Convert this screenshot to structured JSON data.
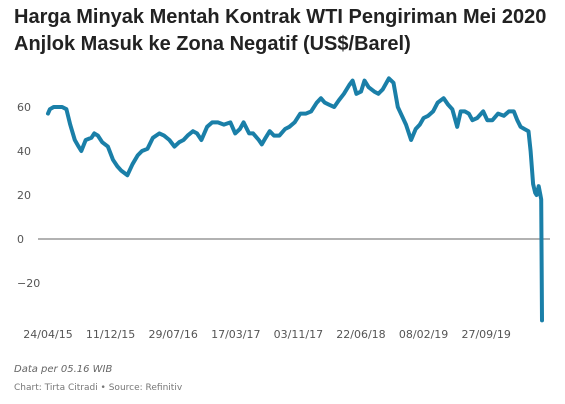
{
  "chart_data": {
    "type": "line",
    "title": "Harga Minyak Mentah Kontrak WTI Pengiriman Mei 2020 Anjlok Masuk ke Zona Negatif (US$/Barel)",
    "xlabel": "",
    "ylabel": "",
    "ylim": [
      -38,
      75
    ],
    "y_ticks": [
      60,
      40,
      20,
      0,
      -20
    ],
    "y_tick_labels": [
      "60",
      "40",
      "20",
      "0",
      "−20"
    ],
    "x_ticks": [
      "2015-04-24",
      "2015-12-11",
      "2016-07-29",
      "2017-03-17",
      "2017-11-03",
      "2018-06-22",
      "2019-02-08",
      "2019-09-27"
    ],
    "x_tick_labels": [
      "24/04/15",
      "11/12/15",
      "29/07/16",
      "17/03/17",
      "03/11/17",
      "22/06/18",
      "08/02/19",
      "27/09/19"
    ],
    "xlim": [
      "2015-04-24",
      "2020-04-20"
    ],
    "grid": false,
    "zero_line": true,
    "line_color": "#1a7fa8",
    "series": [
      {
        "x": [
          "2015-04-24",
          "2015-05-01",
          "2015-05-15",
          "2015-06-01",
          "2015-06-15",
          "2015-07-01",
          "2015-07-15",
          "2015-08-01",
          "2015-08-15",
          "2015-08-25",
          "2015-09-10",
          "2015-10-01",
          "2015-10-12",
          "2015-10-25",
          "2015-11-10",
          "2015-12-01",
          "2015-12-20",
          "2016-01-05",
          "2016-01-20",
          "2016-02-11",
          "2016-03-01",
          "2016-03-20",
          "2016-04-05",
          "2016-04-25",
          "2016-05-15",
          "2016-06-08",
          "2016-06-25",
          "2016-07-15",
          "2016-08-03",
          "2016-08-20",
          "2016-09-05",
          "2016-09-20",
          "2016-10-10",
          "2016-10-25",
          "2016-11-10",
          "2016-12-01",
          "2016-12-20",
          "2017-01-10",
          "2017-02-01",
          "2017-02-25",
          "2017-03-15",
          "2017-04-01",
          "2017-04-15",
          "2017-05-05",
          "2017-05-20",
          "2017-06-10",
          "2017-06-21",
          "2017-07-05",
          "2017-07-20",
          "2017-08-05",
          "2017-08-25",
          "2017-09-15",
          "2017-10-01",
          "2017-10-20",
          "2017-11-10",
          "2017-12-01",
          "2017-12-20",
          "2018-01-10",
          "2018-01-25",
          "2018-02-08",
          "2018-02-25",
          "2018-03-15",
          "2018-04-01",
          "2018-04-20",
          "2018-05-10",
          "2018-05-22",
          "2018-06-05",
          "2018-06-22",
          "2018-07-05",
          "2018-07-20",
          "2018-08-10",
          "2018-08-25",
          "2018-09-10",
          "2018-10-03",
          "2018-10-20",
          "2018-11-05",
          "2018-11-20",
          "2018-12-05",
          "2018-12-24",
          "2019-01-10",
          "2019-01-25",
          "2019-02-08",
          "2019-02-25",
          "2019-03-15",
          "2019-04-01",
          "2019-04-23",
          "2019-05-10",
          "2019-05-25",
          "2019-06-12",
          "2019-06-25",
          "2019-07-10",
          "2019-07-25",
          "2019-08-07",
          "2019-08-25",
          "2019-09-16",
          "2019-10-01",
          "2019-10-20",
          "2019-11-10",
          "2019-12-01",
          "2019-12-20",
          "2020-01-07",
          "2020-01-20",
          "2020-02-01",
          "2020-02-15",
          "2020-03-01",
          "2020-03-09",
          "2020-03-18",
          "2020-03-26",
          "2020-03-31",
          "2020-04-08",
          "2020-04-14",
          "2020-04-17",
          "2020-04-20"
        ],
        "values": [
          57,
          59,
          60,
          60,
          60,
          59,
          52,
          45,
          42,
          40,
          45,
          46,
          48,
          47,
          44,
          42,
          36,
          33,
          31,
          29,
          34,
          38,
          40,
          41,
          46,
          48,
          47,
          45,
          42,
          44,
          45,
          47,
          49,
          48,
          45,
          51,
          53,
          53,
          52,
          53,
          48,
          50,
          53,
          48,
          48,
          45,
          43,
          46,
          49,
          47,
          47,
          50,
          51,
          53,
          57,
          57,
          58,
          62,
          64,
          62,
          61,
          60,
          63,
          66,
          70,
          72,
          66,
          67,
          72,
          69,
          67,
          66,
          68,
          73,
          71,
          60,
          56,
          52,
          45,
          50,
          52,
          55,
          56,
          58,
          62,
          64,
          61,
          59,
          51,
          58,
          58,
          57,
          54,
          55,
          58,
          54,
          54,
          57,
          56,
          58,
          58,
          54,
          51,
          50,
          49,
          40,
          25,
          21,
          20,
          24,
          20,
          18,
          -37
        ]
      }
    ]
  },
  "footer": {
    "note": "Data per 05.16 WIB",
    "credit": "Chart: Tirta Citradi • Source: Refinitiv"
  }
}
